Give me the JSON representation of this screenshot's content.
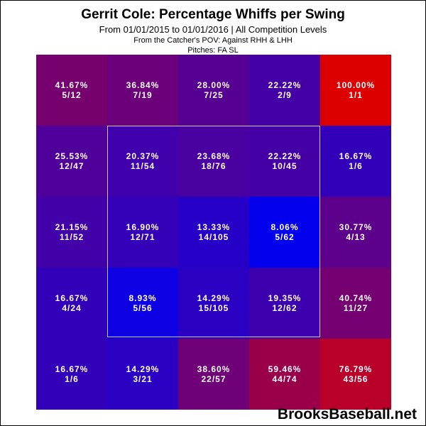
{
  "header": {
    "title": "Gerrit Cole: Percentage Whiffs per Swing",
    "subtitle": "From 01/01/2015 to 01/01/2016 | All Competition Levels",
    "pov": "From the Catcher's POV:  Against RHH & LHH",
    "pitches": "Pitches:  FA  SL"
  },
  "watermark": "BrooksBaseball.net",
  "colors": {
    "low": "#0000ff",
    "high": "#dd0000",
    "zone_border": "#c8c8c8"
  },
  "chart_data": {
    "type": "heatmap",
    "title": "Gerrit Cole: Percentage Whiffs per Swing",
    "rows": 5,
    "cols": 5,
    "cells": [
      [
        {
          "pct": "41.67%",
          "value": 41.67,
          "count": "5/12"
        },
        {
          "pct": "36.84%",
          "value": 36.84,
          "count": "7/19"
        },
        {
          "pct": "28.00%",
          "value": 28.0,
          "count": "7/25"
        },
        {
          "pct": "22.22%",
          "value": 22.22,
          "count": "2/9"
        },
        {
          "pct": "100.00%",
          "value": 100.0,
          "count": "1/1"
        }
      ],
      [
        {
          "pct": "25.53%",
          "value": 25.53,
          "count": "12/47"
        },
        {
          "pct": "20.37%",
          "value": 20.37,
          "count": "11/54"
        },
        {
          "pct": "23.68%",
          "value": 23.68,
          "count": "18/76"
        },
        {
          "pct": "22.22%",
          "value": 22.22,
          "count": "10/45"
        },
        {
          "pct": "16.67%",
          "value": 16.67,
          "count": "1/6"
        }
      ],
      [
        {
          "pct": "21.15%",
          "value": 21.15,
          "count": "11/52"
        },
        {
          "pct": "16.90%",
          "value": 16.9,
          "count": "12/71"
        },
        {
          "pct": "13.33%",
          "value": 13.33,
          "count": "14/105"
        },
        {
          "pct": "8.06%",
          "value": 8.06,
          "count": "5/62"
        },
        {
          "pct": "30.77%",
          "value": 30.77,
          "count": "4/13"
        }
      ],
      [
        {
          "pct": "16.67%",
          "value": 16.67,
          "count": "4/24"
        },
        {
          "pct": "8.93%",
          "value": 8.93,
          "count": "5/56"
        },
        {
          "pct": "14.29%",
          "value": 14.29,
          "count": "15/105"
        },
        {
          "pct": "19.35%",
          "value": 19.35,
          "count": "12/62"
        },
        {
          "pct": "40.74%",
          "value": 40.74,
          "count": "11/27"
        }
      ],
      [
        {
          "pct": "16.67%",
          "value": 16.67,
          "count": "1/6"
        },
        {
          "pct": "14.29%",
          "value": 14.29,
          "count": "3/21"
        },
        {
          "pct": "38.60%",
          "value": 38.6,
          "count": "22/57"
        },
        {
          "pct": "59.46%",
          "value": 59.46,
          "count": "44/74"
        },
        {
          "pct": "76.79%",
          "value": 76.79,
          "count": "43/56"
        }
      ]
    ]
  }
}
